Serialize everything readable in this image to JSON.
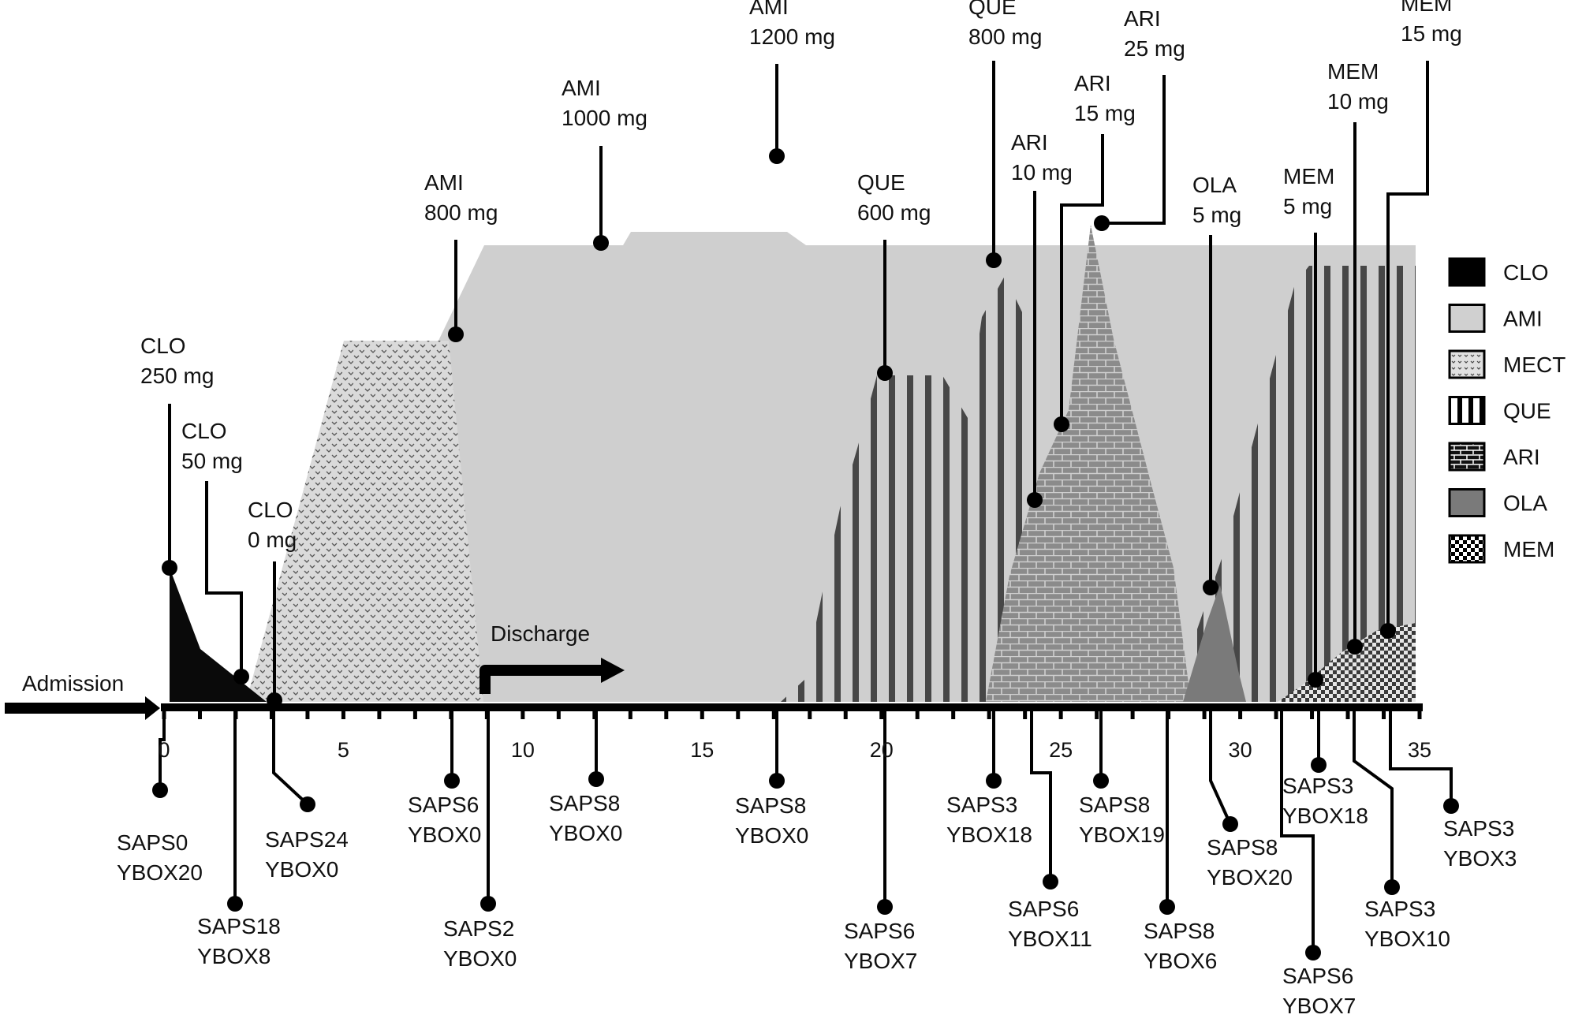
{
  "chart_data": {
    "type": "timeline-area",
    "xlim": [
      0,
      35
    ],
    "x_ticks": [
      0,
      5,
      10,
      15,
      20,
      25,
      30,
      35
    ],
    "labels": {
      "admission": "Admission",
      "discharge": "Discharge"
    },
    "legend": [
      {
        "name": "CLO",
        "fill": "solid-black"
      },
      {
        "name": "AMI",
        "fill": "light-gray"
      },
      {
        "name": "MECT",
        "fill": "speckled"
      },
      {
        "name": "QUE",
        "fill": "vertical-stripes"
      },
      {
        "name": "ARI",
        "fill": "brick"
      },
      {
        "name": "OLA",
        "fill": "dark-gray"
      },
      {
        "name": "MEM",
        "fill": "checker"
      }
    ],
    "colors": {
      "ami": "#cfcfcf",
      "clo": "#0a0a0a",
      "que_stripe": "#4a4a4a",
      "ari": "#8e8e8e",
      "ola": "#7b7b7b",
      "mect": "#d6d6d6",
      "mect_dot": "#6a6a6a"
    },
    "series": [
      {
        "name": "CLO",
        "points": [
          [
            0.2,
            250
          ],
          [
            1.1,
            50
          ],
          [
            2.9,
            0
          ]
        ]
      },
      {
        "name": "AMI",
        "points": [
          [
            7.7,
            800
          ],
          [
            11.6,
            1000
          ],
          [
            16.8,
            1200
          ]
        ]
      },
      {
        "name": "QUE",
        "points": [
          [
            19.8,
            600
          ],
          [
            22.9,
            800
          ]
        ]
      },
      {
        "name": "ARI",
        "points": [
          [
            23.8,
            10
          ],
          [
            24.6,
            15
          ],
          [
            25.9,
            25
          ]
        ]
      },
      {
        "name": "OLA",
        "points": [
          [
            28.8,
            5
          ]
        ]
      },
      {
        "name": "MEM",
        "points": [
          [
            32.3,
            5
          ],
          [
            33.2,
            10
          ],
          [
            34.2,
            15
          ]
        ]
      }
    ],
    "dose_annotations": [
      {
        "drug": "CLO",
        "dose": "250 mg",
        "x": 0.2
      },
      {
        "drug": "CLO",
        "dose": "50 mg",
        "x": 1.1
      },
      {
        "drug": "CLO",
        "dose": "0 mg",
        "x": 2.9
      },
      {
        "drug": "AMI",
        "dose": "800 mg",
        "x": 7.7
      },
      {
        "drug": "AMI",
        "dose": "1000 mg",
        "x": 11.6
      },
      {
        "drug": "AMI",
        "dose": "1200 mg",
        "x": 16.8
      },
      {
        "drug": "QUE",
        "dose": "600 mg",
        "x": 19.8
      },
      {
        "drug": "QUE",
        "dose": "800 mg",
        "x": 22.9
      },
      {
        "drug": "ARI",
        "dose": "10 mg",
        "x": 23.8
      },
      {
        "drug": "ARI",
        "dose": "15 mg",
        "x": 24.6
      },
      {
        "drug": "ARI",
        "dose": "25 mg",
        "x": 25.9
      },
      {
        "drug": "OLA",
        "dose": "5 mg",
        "x": 28.8
      },
      {
        "drug": "MEM",
        "dose": "5 mg",
        "x": 32.3
      },
      {
        "drug": "MEM",
        "dose": "10 mg",
        "x": 33.2
      },
      {
        "drug": "MEM",
        "dose": "15 mg",
        "x": 34.2
      }
    ],
    "assessments": [
      {
        "saps": "SAPS0",
        "ybox": "YBOX20",
        "x": 0
      },
      {
        "saps": "SAPS18",
        "ybox": "YBOX8",
        "x": 2
      },
      {
        "saps": "SAPS24",
        "ybox": "YBOX0",
        "x": 3
      },
      {
        "saps": "SAPS6",
        "ybox": "YBOX0",
        "x": 8
      },
      {
        "saps": "SAPS2",
        "ybox": "YBOX0",
        "x": 9
      },
      {
        "saps": "SAPS8",
        "ybox": "YBOX0",
        "x": 12
      },
      {
        "saps": "SAPS8",
        "ybox": "YBOX0",
        "x": 17
      },
      {
        "saps": "SAPS6",
        "ybox": "YBOX7",
        "x": 20
      },
      {
        "saps": "SAPS3",
        "ybox": "YBOX18",
        "x": 23
      },
      {
        "saps": "SAPS6",
        "ybox": "YBOX11",
        "x": 24
      },
      {
        "saps": "SAPS8",
        "ybox": "YBOX19",
        "x": 26
      },
      {
        "saps": "SAPS8",
        "ybox": "YBOX6",
        "x": 28
      },
      {
        "saps": "SAPS8",
        "ybox": "YBOX20",
        "x": 29
      },
      {
        "saps": "SAPS6",
        "ybox": "YBOX7",
        "x": 31
      },
      {
        "saps": "SAPS3",
        "ybox": "YBOX18",
        "x": 32
      },
      {
        "saps": "SAPS3",
        "ybox": "YBOX10",
        "x": 33
      },
      {
        "saps": "SAPS3",
        "ybox": "YBOX3",
        "x": 34
      }
    ]
  }
}
